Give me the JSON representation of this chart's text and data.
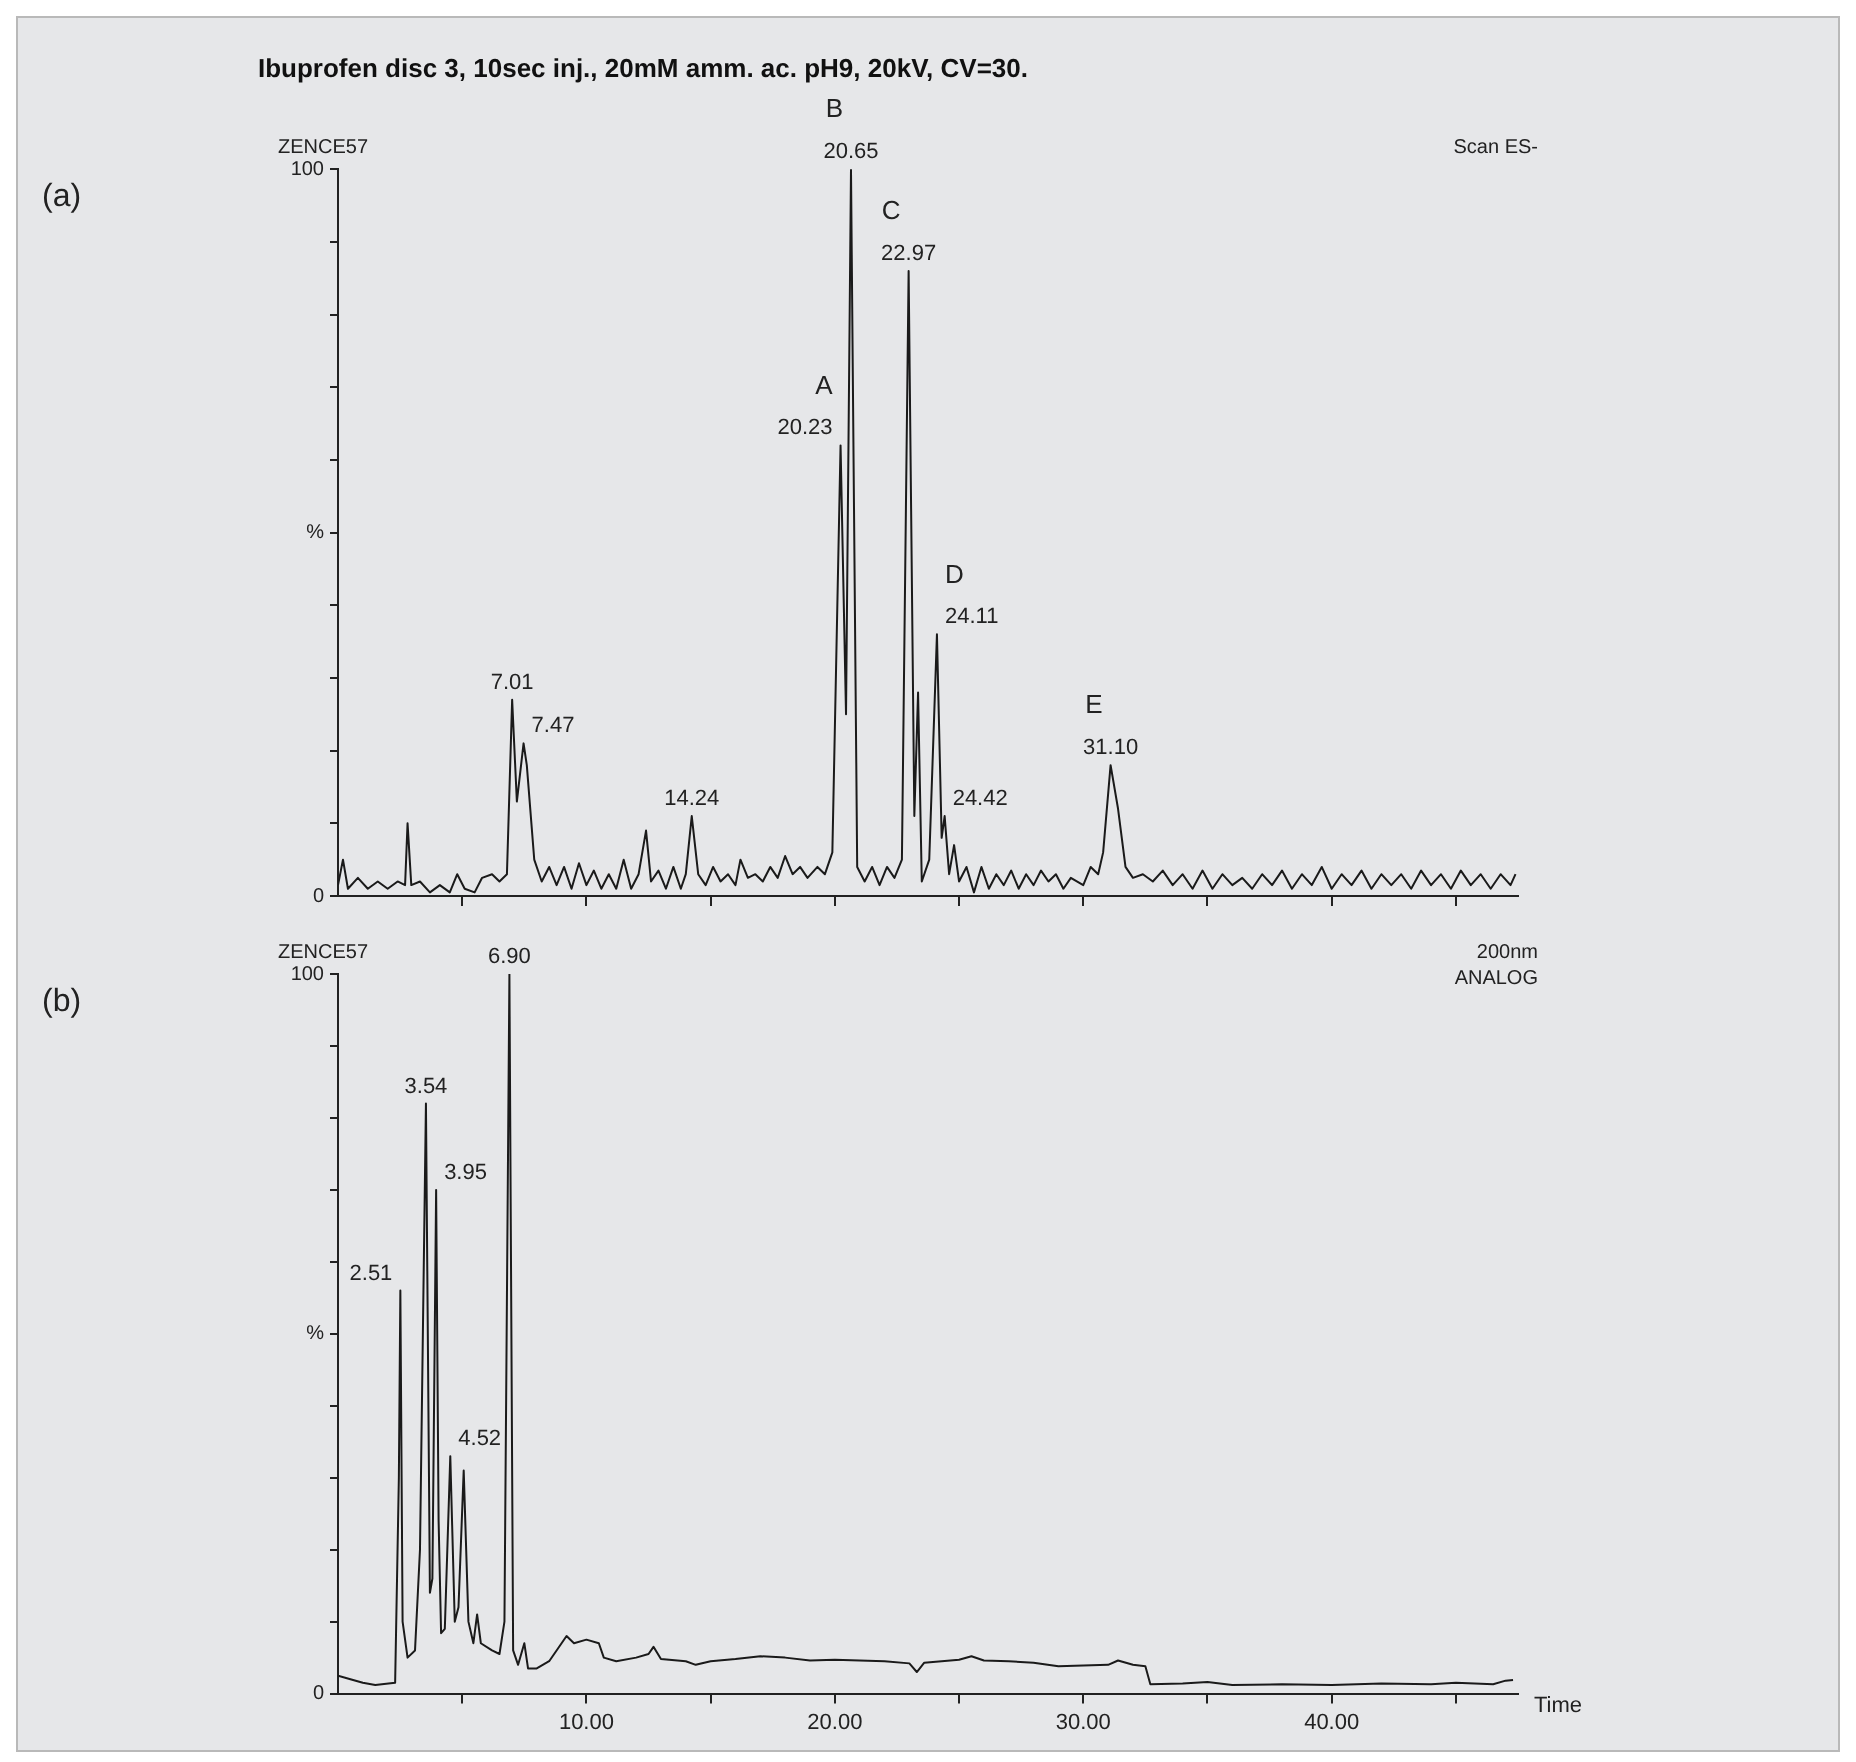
{
  "chart_data": [
    {
      "type": "line",
      "title": "Ibuprofen disc 3, 10sec inj., 20mM amm. ac. pH9, 20kV, CV=30.",
      "annotations": [
        "(a)",
        "ZENCE57",
        "Scan ES-",
        {
          "text": "20.23",
          "x": 20.23,
          "y": 62
        },
        {
          "text": "A",
          "x": 20.23,
          "y": 62
        },
        {
          "text": "20.65",
          "x": 20.65,
          "y": 100
        },
        {
          "text": "B",
          "x": 20.65,
          "y": 100
        },
        {
          "text": "22.97",
          "x": 22.97,
          "y": 86
        },
        {
          "text": "C",
          "x": 22.97,
          "y": 86
        },
        {
          "text": "24.11",
          "x": 24.11,
          "y": 36
        },
        {
          "text": "D",
          "x": 24.11,
          "y": 36
        },
        {
          "text": "31.10",
          "x": 31.1,
          "y": 18
        },
        {
          "text": "E",
          "x": 31.1,
          "y": 18
        },
        {
          "text": "7.01",
          "x": 7.01,
          "y": 27
        },
        {
          "text": "7.47",
          "x": 7.47,
          "y": 21
        },
        {
          "text": "14.24",
          "x": 14.24,
          "y": 11
        },
        {
          "text": "24.42",
          "x": 24.42,
          "y": 11
        }
      ],
      "xlim": [
        0,
        47.5
      ],
      "xticks": [
        {
          "value": 5,
          "label": null
        },
        {
          "value": 10,
          "label": null
        },
        {
          "value": 15,
          "label": null
        },
        {
          "value": 20,
          "label": null
        },
        {
          "value": 25,
          "label": null
        },
        {
          "value": 30,
          "label": null
        },
        {
          "value": 35,
          "label": null
        },
        {
          "value": 40,
          "label": null
        },
        {
          "value": 45,
          "label": null
        }
      ],
      "ylim": [
        0,
        100
      ],
      "yticks": [
        {
          "value": 0,
          "label": "0"
        },
        {
          "value": 10,
          "label": null
        },
        {
          "value": 20,
          "label": null
        },
        {
          "value": 30,
          "label": null
        },
        {
          "value": 40,
          "label": null
        },
        {
          "value": 50,
          "label": "%"
        },
        {
          "value": 60,
          "label": null
        },
        {
          "value": 70,
          "label": null
        },
        {
          "value": 80,
          "label": null
        },
        {
          "value": 90,
          "label": null
        },
        100
      ],
      "tick_labels": "y",
      "marker": "none",
      "line_style": "solid",
      "series": [
        {
          "color": "#1a1a1a",
          "x": [
            0,
            0.2,
            0.4,
            0.8,
            1.2,
            1.6,
            2.0,
            2.4,
            2.7,
            2.8,
            2.95,
            3.3,
            3.7,
            4.1,
            4.5,
            4.8,
            5.1,
            5.5,
            5.8,
            6.2,
            6.5,
            6.8,
            7.01,
            7.2,
            7.47,
            7.6,
            7.9,
            8.2,
            8.5,
            8.8,
            9.1,
            9.4,
            9.7,
            10.0,
            10.3,
            10.6,
            10.9,
            11.2,
            11.5,
            11.8,
            12.1,
            12.4,
            12.6,
            12.9,
            13.2,
            13.5,
            13.8,
            14.0,
            14.24,
            14.5,
            14.8,
            15.1,
            15.4,
            15.7,
            16.0,
            16.2,
            16.5,
            16.8,
            17.1,
            17.4,
            17.7,
            18.0,
            18.3,
            18.6,
            18.9,
            19.3,
            19.6,
            19.9,
            20.23,
            20.45,
            20.65,
            20.9,
            21.2,
            21.5,
            21.8,
            22.1,
            22.4,
            22.7,
            22.97,
            23.2,
            23.35,
            23.5,
            23.8,
            24.11,
            24.3,
            24.42,
            24.6,
            24.8,
            25.0,
            25.3,
            25.6,
            25.9,
            26.2,
            26.5,
            26.8,
            27.1,
            27.4,
            27.7,
            28.0,
            28.3,
            28.6,
            28.9,
            29.2,
            29.5,
            30.0,
            30.3,
            30.6,
            30.8,
            31.1,
            31.4,
            31.7,
            32.0,
            32.4,
            32.8,
            33.2,
            33.6,
            34.0,
            34.4,
            34.8,
            35.2,
            35.6,
            36.0,
            36.4,
            36.8,
            37.2,
            37.6,
            38.0,
            38.4,
            38.8,
            39.2,
            39.6,
            40.0,
            40.4,
            40.8,
            41.2,
            41.6,
            42.0,
            42.4,
            42.8,
            43.2,
            43.6,
            44.0,
            44.4,
            44.8,
            45.2,
            45.6,
            46.0,
            46.4,
            46.8,
            47.2,
            47.4
          ],
          "values": [
            1.5,
            5,
            1,
            2.5,
            1,
            2,
            1,
            2,
            1.5,
            10,
            1.5,
            2,
            0.5,
            1.5,
            0.5,
            3,
            1,
            0.5,
            2.5,
            3,
            2,
            3,
            27,
            13,
            21,
            18,
            5,
            2,
            4,
            1.5,
            4,
            1,
            4.5,
            1.5,
            3.5,
            1,
            3,
            1,
            5,
            1,
            3,
            9,
            2,
            3.5,
            1,
            4,
            1,
            3,
            11,
            3,
            1.5,
            4,
            2,
            3,
            1.5,
            5,
            2.5,
            3,
            2,
            4,
            2.5,
            5.5,
            3,
            4,
            2.5,
            4,
            3,
            6,
            62,
            25,
            100,
            4,
            2,
            4,
            1.5,
            4,
            2.5,
            5,
            86,
            11,
            28,
            2,
            5,
            36,
            8,
            11,
            3,
            7,
            2,
            4,
            0.5,
            4,
            1,
            3,
            1.5,
            3.5,
            1,
            3,
            1.5,
            3.5,
            2,
            3,
            1,
            2.5,
            1.5,
            4,
            3,
            6,
            18,
            12,
            4,
            2.5,
            3,
            2,
            3.5,
            1.5,
            3,
            1,
            3.5,
            1,
            3,
            1.5,
            2.5,
            1,
            3,
            1.5,
            3.5,
            1,
            3,
            1.5,
            4,
            1,
            3,
            1.5,
            3.5,
            1,
            3,
            1.5,
            3,
            1,
            3.5,
            1.5,
            3,
            1,
            3.5,
            1.5,
            3,
            1,
            3,
            1.5,
            3
          ]
        }
      ]
    },
    {
      "type": "line",
      "xlabel": "Time",
      "annotations": [
        "(b)",
        "ZENCE57",
        "200nm",
        "ANALOG",
        {
          "text": "2.51",
          "x": 2.51,
          "y": 56
        },
        {
          "text": "3.54",
          "x": 3.54,
          "y": 82
        },
        {
          "text": "3.95",
          "x": 3.95,
          "y": 70
        },
        {
          "text": "4.52",
          "x": 4.52,
          "y": 33
        },
        {
          "text": "6.90",
          "x": 6.9,
          "y": 100
        }
      ],
      "xlim": [
        0,
        47.5
      ],
      "xticks": [
        {
          "value": 5,
          "label": null
        },
        {
          "value": 10,
          "label": "10.00"
        },
        {
          "value": 15,
          "label": null
        },
        {
          "value": 20,
          "label": "20.00"
        },
        {
          "value": 25,
          "label": null
        },
        {
          "value": 30,
          "label": "30.00"
        },
        {
          "value": 35,
          "label": null
        },
        {
          "value": 40,
          "label": "40.00"
        },
        {
          "value": 45,
          "label": null
        }
      ],
      "ylim": [
        0,
        100
      ],
      "yticks": [
        {
          "value": 0,
          "label": "0"
        },
        {
          "value": 10,
          "label": null
        },
        {
          "value": 20,
          "label": null
        },
        {
          "value": 30,
          "label": null
        },
        {
          "value": 40,
          "label": null
        },
        {
          "value": 50,
          "label": "%"
        },
        {
          "value": 60,
          "label": null
        },
        {
          "value": 70,
          "label": null
        },
        {
          "value": 80,
          "label": null
        },
        {
          "value": 90,
          "label": null
        },
        100
      ],
      "marker": "none",
      "line_style": "solid",
      "series": [
        {
          "color": "#1a1a1a",
          "x": [
            0,
            0.5,
            1.0,
            1.5,
            2.3,
            2.45,
            2.51,
            2.6,
            2.8,
            3.1,
            3.3,
            3.54,
            3.7,
            3.8,
            3.95,
            4.05,
            4.15,
            4.3,
            4.52,
            4.7,
            4.85,
            5.06,
            5.25,
            5.45,
            5.6,
            5.75,
            6.2,
            6.5,
            6.7,
            6.9,
            7.05,
            7.25,
            7.5,
            7.65,
            8.0,
            8.5,
            9.0,
            9.2,
            9.5,
            10.0,
            10.5,
            10.7,
            11.2,
            12.0,
            12.5,
            12.7,
            13.0,
            14.0,
            14.4,
            15.0,
            16.0,
            17.0,
            18.0,
            19.0,
            20.0,
            21.0,
            22.0,
            23.0,
            23.3,
            23.6,
            25.0,
            25.5,
            26.0,
            27.0,
            28.0,
            29.0,
            30.0,
            31.0,
            31.4,
            32.0,
            32.5,
            32.7,
            34.0,
            35.0,
            36.0,
            38.0,
            40.0,
            42.0,
            44.0,
            45.0,
            46.5,
            47.0,
            47.3
          ],
          "values": [
            2.5,
            2,
            1.5,
            1.2,
            1.5,
            30,
            56,
            10,
            5,
            6,
            20,
            82,
            14,
            16,
            70,
            24,
            8.4,
            9,
            33,
            10,
            12,
            31,
            10,
            7,
            11,
            7,
            6,
            5.5,
            10,
            100,
            6,
            4,
            7,
            3.5,
            3.5,
            4.5,
            7,
            8,
            7,
            7.5,
            7,
            5,
            4.5,
            5,
            5.5,
            6.5,
            4.8,
            4.5,
            4,
            4.5,
            4.8,
            5.2,
            5,
            4.6,
            4.7,
            4.6,
            4.5,
            4.2,
            3,
            4.3,
            4.7,
            5.2,
            4.6,
            4.5,
            4.3,
            3.8,
            3.9,
            4,
            4.6,
            4,
            3.8,
            1.3,
            1.4,
            1.6,
            1.2,
            1.3,
            1.2,
            1.4,
            1.3,
            1.5,
            1.3,
            1.8,
            1.9
          ]
        }
      ]
    }
  ]
}
